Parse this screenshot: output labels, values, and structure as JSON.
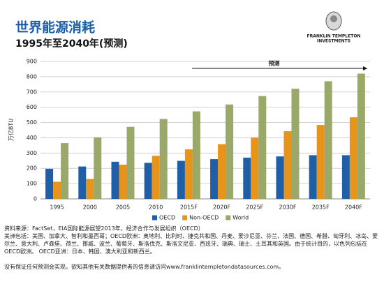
{
  "chart_data": {
    "type": "bar",
    "title": "世界能源消耗",
    "subtitle": "1995年至2040年(预测)",
    "logo": {
      "line1": "FRANKLIN TEMPLETON",
      "line2": "INVESTMENTS"
    },
    "y_label": "万亿BTU",
    "annotation": "预测",
    "categories": [
      "1995",
      "2000",
      "2005",
      "2010",
      "2015F",
      "2020F",
      "2025F",
      "2030F",
      "2035F",
      "2040F"
    ],
    "series": [
      {
        "name": "OECD",
        "color": "#1f5fa8",
        "values": [
          197,
          212,
          243,
          236,
          249,
          260,
          270,
          278,
          286,
          286
        ]
      },
      {
        "name": "Non-OECD",
        "color": "#e8941a",
        "values": [
          112,
          131,
          224,
          282,
          324,
          358,
          402,
          443,
          484,
          534
        ]
      },
      {
        "name": "World",
        "color": "#9aa86a",
        "values": [
          365,
          403,
          472,
          523,
          573,
          618,
          673,
          721,
          770,
          820
        ]
      }
    ],
    "ylim": [
      0,
      900
    ],
    "yticks": [
      0,
      100,
      200,
      300,
      400,
      500,
      600,
      700,
      800,
      900
    ],
    "grid": true,
    "legend": "bottom",
    "footnotes": [
      "资料来源：FactSet，EIA国际能源展望2013年，经济合作与发展组织（OECD）",
      "美洲包括：美国、加拿大、智利和墨西哥；OECD欧洲：奥地利、比利时、捷克共和国、丹麦、爱沙尼亚、芬兰、法国、德国、希腊、匈牙利、冰岛、爱尔兰、意大利、卢森堡、荷兰、挪威、波兰、葡萄牙、斯洛伐克、斯洛文尼亚、西班牙、瑞典、瑞士、土耳其和英国。由于统计目的，以色列包括在OECD欧洲。 OECD亚洲：日本、韩国、澳大利亚和新西兰。",
      "没有保证任何预测会实现。欲知其他有关数据提供者的信息请访问www.franklintempletondatasources.com。"
    ]
  }
}
